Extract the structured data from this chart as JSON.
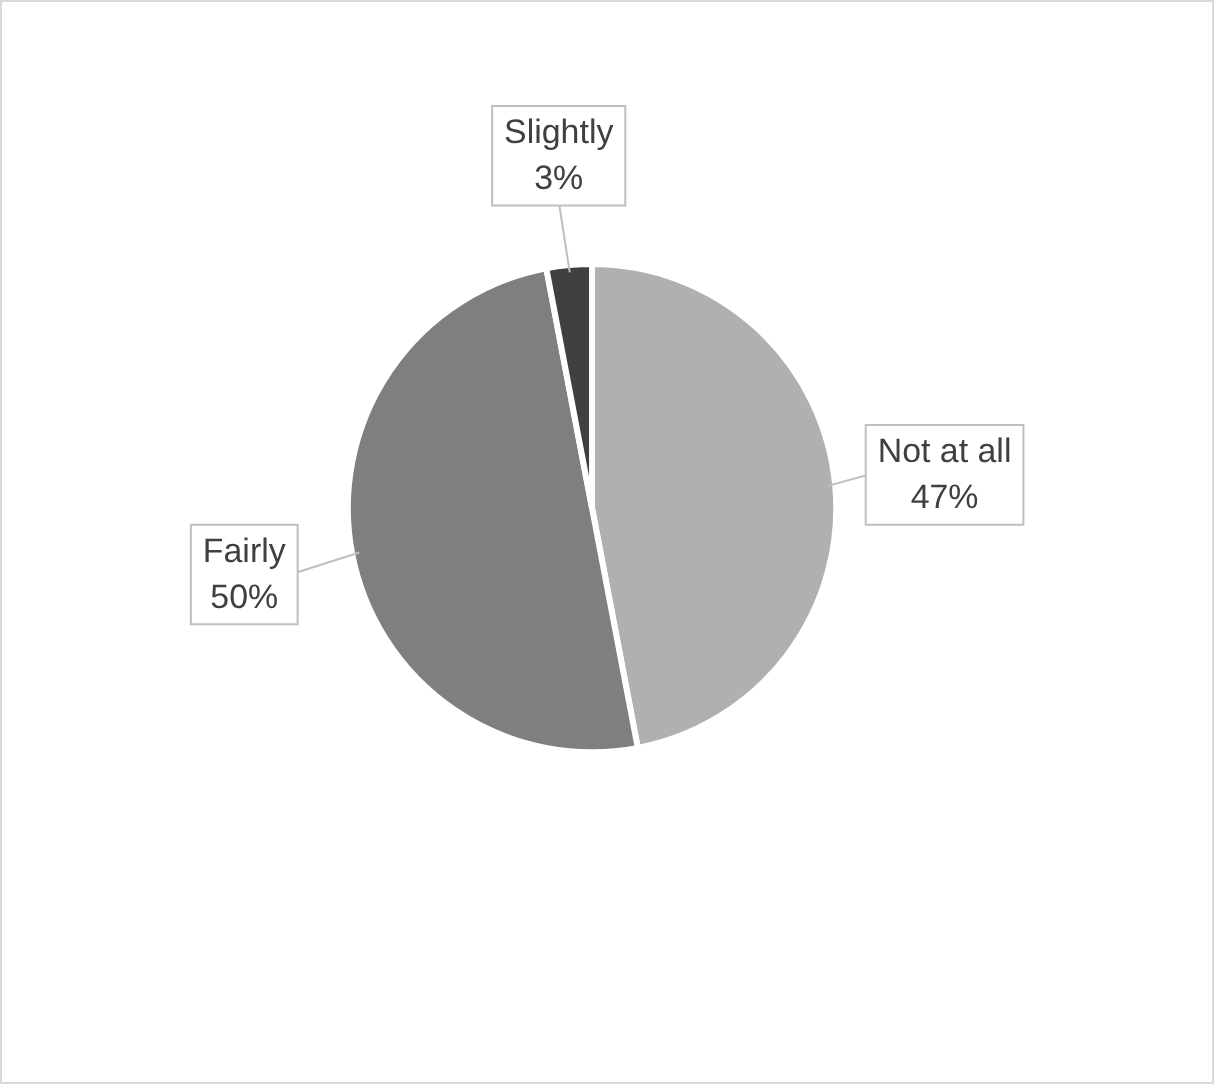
{
  "chart_data": {
    "type": "pie",
    "categories": [
      "Not at all",
      "Fairly",
      "Slightly"
    ],
    "values": [
      47,
      50,
      3
    ],
    "colors": [
      "#b0b0b0",
      "#7f7f7f",
      "#404040"
    ],
    "value_labels": [
      "47%",
      "50%",
      "3%"
    ],
    "legend": false
  }
}
